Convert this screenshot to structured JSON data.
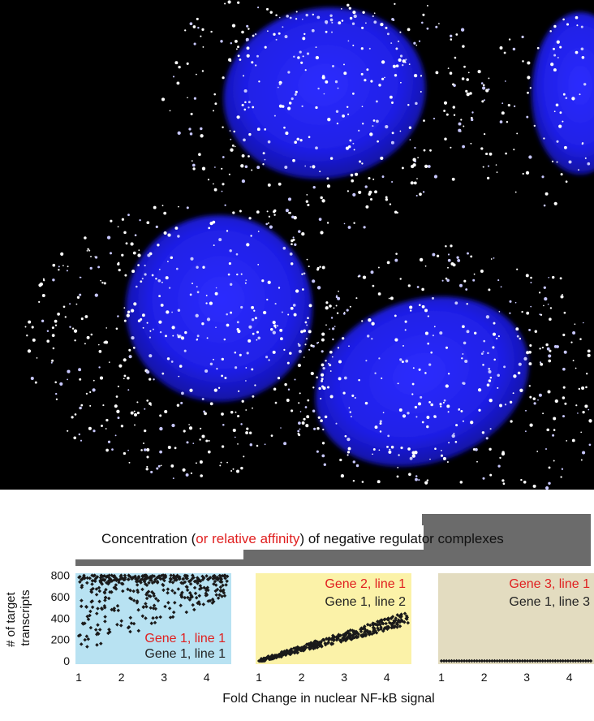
{
  "header": {
    "parts": [
      {
        "text": "Concentration (",
        "color": "#111111"
      },
      {
        "text": "or relative affinity",
        "color": "#e02020"
      },
      {
        "text": ") of negative regulator complexes",
        "color": "#111111"
      }
    ]
  },
  "colors": {
    "panel1_bg": "#b8e2f2",
    "panel2_bg": "#fbf2a8",
    "panel3_bg": "#e3dcc0",
    "ramp": "#6b6b6b",
    "points": "#1a1a1a",
    "label_red": "#e02020",
    "label_black": "#222222",
    "nucleus": "#2a2aff",
    "background": "#000000",
    "spot": "#ffffff"
  },
  "chart_data": [
    {
      "type": "scatter",
      "ylabel": "# of target transcripts",
      "xlabel": "",
      "xlim": [
        1,
        4.5
      ],
      "ylim": [
        0,
        850
      ],
      "xticks": [
        "1",
        "2",
        "3",
        "4"
      ],
      "yticks": [
        "800",
        "600",
        "400",
        "200",
        "0"
      ],
      "labels": [
        {
          "text": "Gene 1, line 1",
          "color": "red"
        },
        {
          "text": "Gene 1, line 1",
          "color": "black"
        }
      ],
      "pattern": "saturated: values scattered 100-800, rising toward 800 as x increases",
      "samples": [
        [
          1.0,
          620
        ],
        [
          1.1,
          250
        ],
        [
          1.3,
          700
        ],
        [
          1.5,
          420
        ],
        [
          1.8,
          760
        ],
        [
          2.0,
          550
        ],
        [
          2.3,
          690
        ],
        [
          2.6,
          320
        ],
        [
          3.0,
          740
        ],
        [
          3.4,
          610
        ],
        [
          3.8,
          780
        ],
        [
          4.2,
          700
        ],
        [
          4.5,
          800
        ]
      ]
    },
    {
      "type": "scatter",
      "ylabel": "",
      "xlabel": "",
      "xlim": [
        1,
        4.5
      ],
      "ylim": [
        0,
        850
      ],
      "xticks": [
        "1",
        "2",
        "3",
        "4"
      ],
      "labels": [
        {
          "text": "Gene 2, line 1",
          "color": "red"
        },
        {
          "text": "Gene 1, line 2",
          "color": "black"
        }
      ],
      "pattern": "linear: y rises from ~0 at x=1 to ~420 at x=4.5",
      "samples": [
        [
          1.0,
          10
        ],
        [
          1.5,
          60
        ],
        [
          2.0,
          120
        ],
        [
          2.5,
          180
        ],
        [
          3.0,
          240
        ],
        [
          3.5,
          300
        ],
        [
          4.0,
          360
        ],
        [
          4.5,
          420
        ]
      ]
    },
    {
      "type": "scatter",
      "ylabel": "",
      "xlabel": "Fold Change in nuclear NF-kB signal",
      "xlim": [
        1,
        4.5
      ],
      "ylim": [
        0,
        850
      ],
      "xticks": [
        "1",
        "2",
        "3",
        "4"
      ],
      "labels": [
        {
          "text": "Gene 3, line 1",
          "color": "red"
        },
        {
          "text": "Gene 1, line 3",
          "color": "black"
        }
      ],
      "pattern": "flat: all values at 0",
      "samples": [
        [
          1.0,
          0
        ],
        [
          2.0,
          0
        ],
        [
          3.0,
          0
        ],
        [
          4.0,
          0
        ],
        [
          4.5,
          0
        ]
      ]
    }
  ]
}
